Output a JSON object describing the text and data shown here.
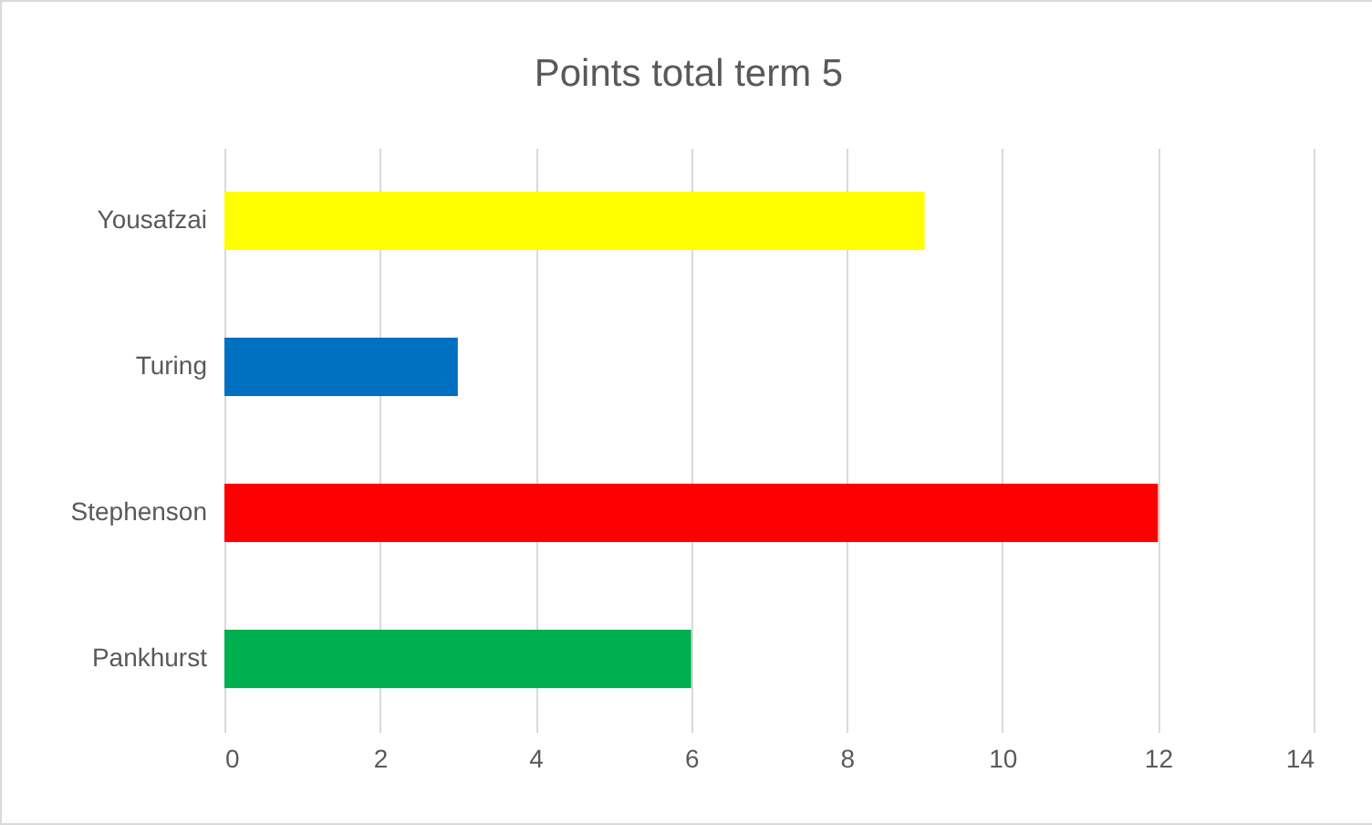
{
  "chart_data": {
    "type": "bar",
    "orientation": "horizontal",
    "title": "Points total term 5",
    "categories": [
      "Yousafzai",
      "Turing",
      "Stephenson",
      "Pankhurst"
    ],
    "values": [
      9,
      3,
      12,
      6
    ],
    "colors": [
      "#ffff00",
      "#0070c0",
      "#ff0000",
      "#00b050"
    ],
    "xlim": [
      0,
      14
    ],
    "xticks": [
      0,
      2,
      4,
      6,
      8,
      10,
      12,
      14
    ],
    "grid": "x"
  }
}
